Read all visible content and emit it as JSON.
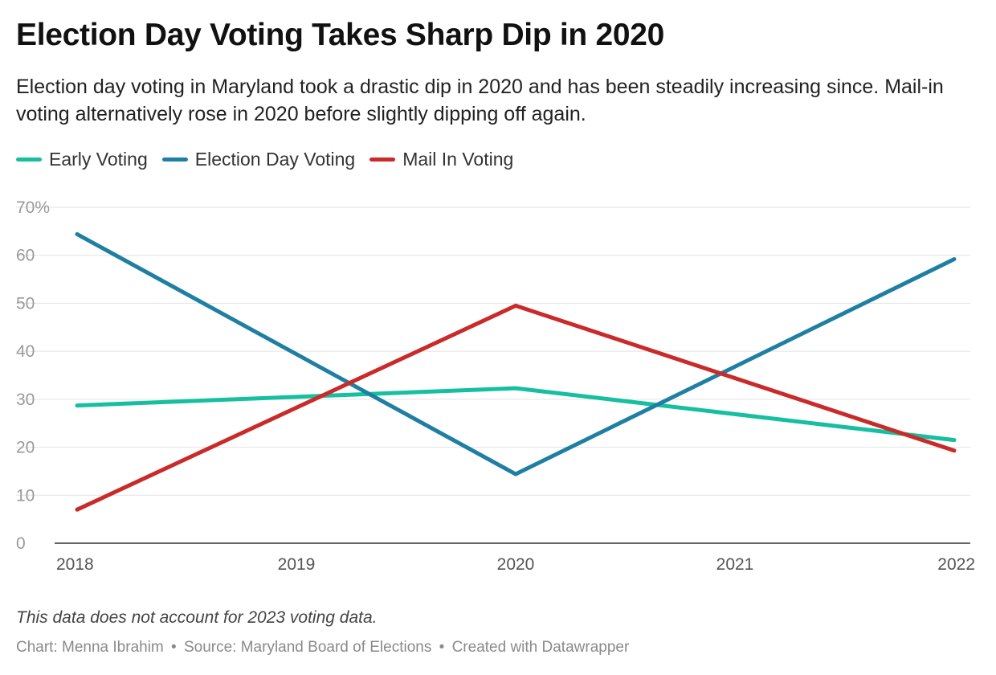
{
  "title": "Election Day Voting Takes Sharp Dip in 2020",
  "subtitle": "Election day voting in Maryland took a drastic dip in 2020 and has been steadily increasing since. Mail-in voting alternatively rose in 2020 before slightly dipping off again.",
  "note": "This data does not account for 2023 voting data.",
  "footer": {
    "chart_credit": "Chart: Menna Ibrahim",
    "source": "Source: Maryland Board of Elections",
    "tool": "Created with Datawrapper",
    "separator": "•"
  },
  "chart_data": {
    "type": "line",
    "title": "Election Day Voting Takes Sharp Dip in 2020",
    "xlabel": "",
    "ylabel": "",
    "x": [
      2018,
      2019,
      2020,
      2021,
      2022
    ],
    "x_ticks": [
      "2018",
      "2019",
      "2020",
      "2021",
      "2022"
    ],
    "y_ticks": [
      "70%",
      "60",
      "50",
      "40",
      "30",
      "20",
      "10",
      "0"
    ],
    "ylim": [
      0,
      70
    ],
    "grid": true,
    "legend_position": "top-left",
    "series": [
      {
        "name": "Early Voting",
        "color": "#15bf9f",
        "points": [
          [
            2018,
            28.7
          ],
          [
            2020,
            32.3
          ],
          [
            2022,
            21.5
          ]
        ]
      },
      {
        "name": "Election Day Voting",
        "color": "#1f7fa3",
        "points": [
          [
            2018,
            64.4
          ],
          [
            2020,
            14.4
          ],
          [
            2022,
            59.2
          ]
        ]
      },
      {
        "name": "Mail In Voting",
        "color": "#c92a2a",
        "points": [
          [
            2018,
            7.0
          ],
          [
            2020,
            49.5
          ],
          [
            2022,
            19.3
          ]
        ]
      }
    ]
  }
}
